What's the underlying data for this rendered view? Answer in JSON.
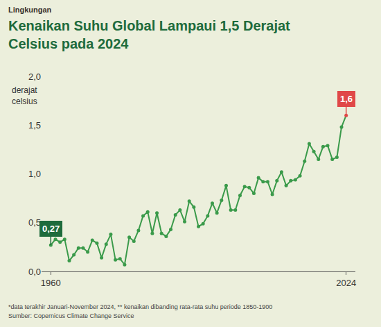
{
  "chart_data": {
    "type": "line",
    "section": "Lingkungan",
    "title": "Kenaikan Suhu Global Lampaui 1,5 Derajat Celsius pada 2024",
    "y_label": "derajat celsius",
    "x": [
      1960,
      1961,
      1962,
      1963,
      1964,
      1965,
      1966,
      1967,
      1968,
      1969,
      1970,
      1971,
      1972,
      1973,
      1974,
      1975,
      1976,
      1977,
      1978,
      1979,
      1980,
      1981,
      1982,
      1983,
      1984,
      1985,
      1986,
      1987,
      1988,
      1989,
      1990,
      1991,
      1992,
      1993,
      1994,
      1995,
      1996,
      1997,
      1998,
      1999,
      2000,
      2001,
      2002,
      2003,
      2004,
      2005,
      2006,
      2007,
      2008,
      2009,
      2010,
      2011,
      2012,
      2013,
      2014,
      2015,
      2016,
      2017,
      2018,
      2019,
      2020,
      2021,
      2022,
      2023,
      2024
    ],
    "values": [
      0.27,
      0.33,
      0.3,
      0.33,
      0.11,
      0.17,
      0.24,
      0.24,
      0.2,
      0.32,
      0.29,
      0.14,
      0.28,
      0.38,
      0.12,
      0.13,
      0.07,
      0.35,
      0.31,
      0.42,
      0.57,
      0.61,
      0.39,
      0.6,
      0.39,
      0.36,
      0.43,
      0.58,
      0.63,
      0.51,
      0.72,
      0.66,
      0.46,
      0.49,
      0.57,
      0.7,
      0.6,
      0.73,
      0.88,
      0.63,
      0.63,
      0.78,
      0.87,
      0.86,
      0.8,
      0.96,
      0.92,
      0.92,
      0.79,
      0.93,
      1.02,
      0.88,
      0.93,
      0.94,
      0.98,
      1.13,
      1.31,
      1.23,
      1.15,
      1.28,
      1.29,
      1.15,
      1.17,
      1.48,
      1.6
    ],
    "color": "#3a9a4a",
    "marker": "circle",
    "line_style": "solid",
    "xlim": [
      1958,
      2026
    ],
    "xticks": [
      1960,
      2024
    ],
    "ylim": [
      0,
      2
    ],
    "yticks": [
      {
        "value": 0,
        "label": "0,0"
      },
      {
        "value": 0.5,
        "label": "0,5"
      },
      {
        "value": 1,
        "label": "1,0"
      },
      {
        "value": 1.5,
        "label": "1,5"
      },
      {
        "value": 2,
        "label": "2,0"
      }
    ],
    "grid": false,
    "annotations": [
      {
        "x": 1960,
        "y": 0.27,
        "text": "0,27",
        "color": "#1e6b3c"
      },
      {
        "x": 2024,
        "y": 1.6,
        "text": "1,6",
        "color": "#e04848"
      }
    ],
    "footnotes": [
      "*data terakhir Januari-November 2024, ** kenaikan dibanding rata-rata suhu periode 1850-1900",
      "Sumber: Copernicus Climate Change Service"
    ]
  }
}
